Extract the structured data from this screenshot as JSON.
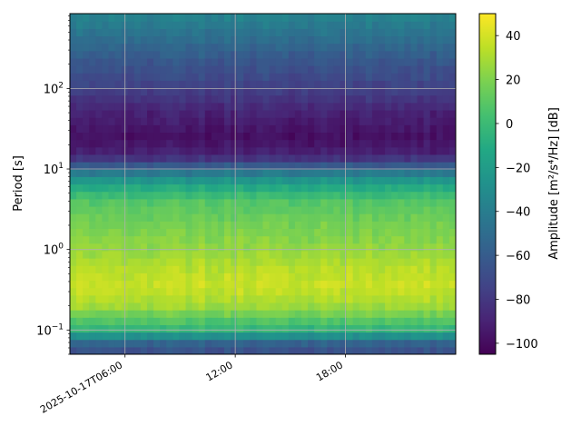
{
  "chart_data": {
    "type": "heatmap",
    "title": "",
    "xlabel": "",
    "ylabel": "Period [s]",
    "colorbar_label": "Amplitude [m²/s⁴/Hz] [dB]",
    "x_axis": {
      "type": "time",
      "range": [
        "2025-10-17T03:00",
        "2025-10-18T00:00"
      ],
      "ticks": [
        {
          "value": "2025-10-17T06:00",
          "label": "2025-10-17T06:00"
        },
        {
          "value": "2025-10-17T12:00",
          "label": "12:00"
        },
        {
          "value": "2025-10-17T18:00",
          "label": "18:00"
        }
      ]
    },
    "y_axis": {
      "scale": "log",
      "range": [
        0.05,
        850
      ],
      "ticks": [
        {
          "value": 0.1,
          "label_base": "10",
          "label_exp": "−1"
        },
        {
          "value": 1,
          "label_base": "10",
          "label_exp": "0"
        },
        {
          "value": 10,
          "label_base": "10",
          "label_exp": "1"
        },
        {
          "value": 100,
          "label_base": "10",
          "label_exp": "2"
        }
      ]
    },
    "colorbar": {
      "colormap": "viridis",
      "range": [
        -105,
        50
      ],
      "ticks": [
        {
          "value": 40,
          "label": "40"
        },
        {
          "value": 20,
          "label": "20"
        },
        {
          "value": 0,
          "label": "0"
        },
        {
          "value": -20,
          "label": "−20"
        },
        {
          "value": -40,
          "label": "−40"
        },
        {
          "value": -60,
          "label": "−60"
        },
        {
          "value": -80,
          "label": "−80"
        },
        {
          "value": -100,
          "label": "−100"
        }
      ]
    },
    "grid": true,
    "amplitude_profile_db": [
      {
        "period_s": 0.05,
        "db": -70
      },
      {
        "period_s": 0.07,
        "db": -55
      },
      {
        "period_s": 0.1,
        "db": -5
      },
      {
        "period_s": 0.2,
        "db": 28
      },
      {
        "period_s": 0.35,
        "db": 38
      },
      {
        "period_s": 0.6,
        "db": 33
      },
      {
        "period_s": 1.0,
        "db": 25
      },
      {
        "period_s": 2.0,
        "db": 18
      },
      {
        "period_s": 4.0,
        "db": 8
      },
      {
        "period_s": 6.5,
        "db": -15
      },
      {
        "period_s": 9.0,
        "db": -42
      },
      {
        "period_s": 15,
        "db": -90
      },
      {
        "period_s": 25,
        "db": -98
      },
      {
        "period_s": 50,
        "db": -90
      },
      {
        "period_s": 100,
        "db": -75
      },
      {
        "period_s": 200,
        "db": -65
      },
      {
        "period_s": 400,
        "db": -50
      },
      {
        "period_s": 850,
        "db": -35
      }
    ]
  }
}
